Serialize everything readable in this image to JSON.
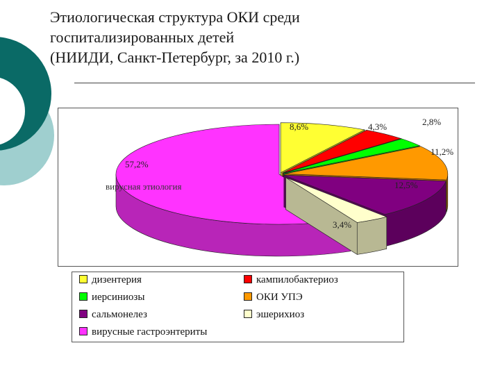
{
  "slide": {
    "title_lines": [
      "Этиологическая структура ОКИ среди",
      "госпитализированных детей",
      "(НИИДИ, Санкт-Петербург, за 2010 г.)"
    ]
  },
  "chart_data": {
    "type": "pie",
    "title": "",
    "slices": [
      {
        "name": "дизентерия",
        "value": 8.6,
        "label": "8,6%",
        "color": "#ffff33"
      },
      {
        "name": "кампилобактериоз",
        "value": 4.3,
        "label": "4,3%",
        "color": "#ff0000"
      },
      {
        "name": "иерсиниозы",
        "value": 2.8,
        "label": "2,8%",
        "color": "#00ff00"
      },
      {
        "name": "ОКИ УПЭ",
        "value": 11.2,
        "label": "11,2%",
        "color": "#ff9900"
      },
      {
        "name": "сальмонелез",
        "value": 12.5,
        "label": "12,5%",
        "color": "#800080"
      },
      {
        "name": "эшерихиоз",
        "value": 3.4,
        "label": "3,4%",
        "color": "#ffffcc"
      },
      {
        "name": "вирусные гастроэнтериты",
        "value": 57.2,
        "label": "57,2%",
        "color": "#ff33ff"
      }
    ],
    "annotations": [
      "вирусная этиология"
    ],
    "legend_position": "bottom"
  }
}
